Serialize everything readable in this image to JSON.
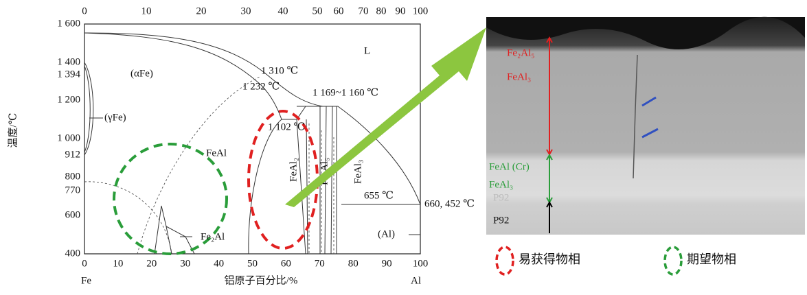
{
  "phase_diagram": {
    "top_axis_ticks": [
      "0",
      "10",
      "20",
      "30",
      "40",
      "50",
      "60",
      "70",
      "80",
      "90",
      "100"
    ],
    "bottom_axis_ticks": [
      "0",
      "10",
      "20",
      "30",
      "40",
      "50",
      "60",
      "70",
      "80",
      "90",
      "100"
    ],
    "left_axis_ticks": [
      "1 600",
      "1 400",
      "1 394",
      "1 200",
      "1 000",
      "912",
      "800",
      "770",
      "600",
      "400"
    ],
    "y_axis_label": "温度/℃",
    "x_axis_label": "铝原子百分比/%",
    "x_left_end": "Fe",
    "x_right_end": "Al",
    "annotations": {
      "liquid": "L",
      "alpha_fe": "(αFe)",
      "t1310": "1 310 ℃",
      "t1232": "1 232 ℃",
      "t1169": "1 169~1 160 ℃",
      "t1102": "1 102 ℃",
      "gamma_fe": "(γFe)",
      "feal": "FeAl",
      "fe2al": "Fe₂Al",
      "feal2": "FeAl₂",
      "fe2al5": "Fe₂Al₅",
      "feal3": "FeAl₃",
      "t655": "655 ℃",
      "t660": "660, 452 ℃",
      "al": "(Al)"
    }
  },
  "micrograph": {
    "labels": [
      "Fe₂Al₅",
      "FeAl₃",
      "FeAl (Cr)",
      "FeAl₃",
      "P92",
      "P92"
    ]
  },
  "legend": [
    "易获得物相",
    "期望物相"
  ]
}
